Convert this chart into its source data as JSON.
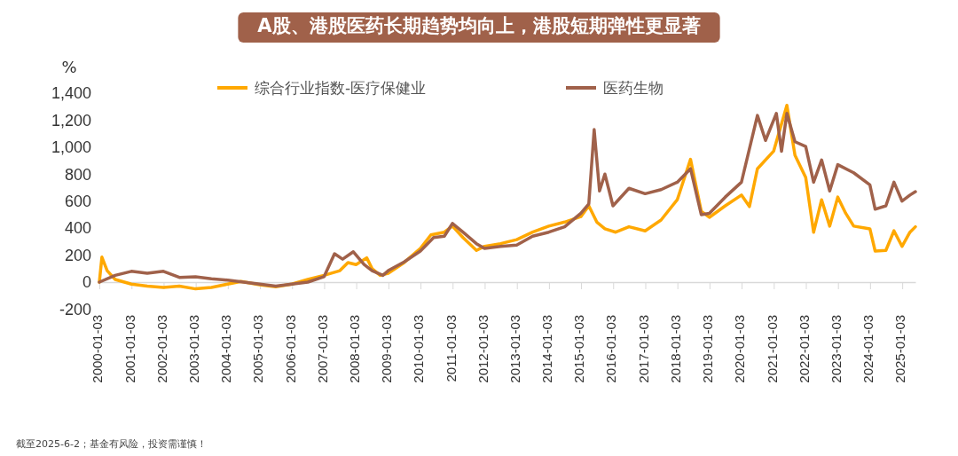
{
  "chart_data": {
    "type": "line",
    "title": "A股、港股医药长期趋势均向上，港股短期弹性更显著",
    "ylabel": "%",
    "annotations": [
      "截至2025-6-2；基金有风险，投资需谨慎！"
    ],
    "xlim": [
      "2000-01-03",
      "2025-06-02"
    ],
    "xticks": [
      "2000-01-03",
      "2001-01-03",
      "2002-01-03",
      "2003-01-03",
      "2004-01-03",
      "2005-01-03",
      "2006-01-03",
      "2007-01-03",
      "2008-01-03",
      "2009-01-03",
      "2010-01-03",
      "2011-01-03",
      "2012-01-03",
      "2013-01-03",
      "2014-01-03",
      "2015-01-03",
      "2016-01-03",
      "2017-01-03",
      "2018-01-03",
      "2019-01-03",
      "2020-01-03",
      "2021-01-03",
      "2022-01-03",
      "2023-01-03",
      "2024-01-03",
      "2025-01-03"
    ],
    "ylim": [
      -200,
      1400
    ],
    "yticks": [
      {
        "value": -200,
        "label": "-200"
      },
      0,
      200,
      400,
      600,
      800,
      {
        "value": 1000,
        "label": "1,000"
      },
      {
        "value": 1200,
        "label": "1,200"
      },
      {
        "value": 1400,
        "label": "1,400"
      }
    ],
    "legend": "top",
    "grid": false,
    "line_style": "solid",
    "marker": "none",
    "series": [
      {
        "name": "综合行业指数-医疗保健业",
        "color": "#ffa800",
        "x": [
          "2000-01-03",
          "2000-02",
          "2000-04",
          "2000-07",
          "2001-01",
          "2001-07",
          "2002-01",
          "2002-07",
          "2003-01",
          "2003-07",
          "2004-01",
          "2004-06",
          "2005-01",
          "2005-07",
          "2006-01",
          "2006-07",
          "2007-01",
          "2007-07",
          "2007-10",
          "2008-01",
          "2008-05",
          "2008-07",
          "2008-10",
          "2009-01",
          "2009-07",
          "2010-01",
          "2010-05",
          "2010-10",
          "2011-01",
          "2011-05",
          "2011-10",
          "2012-01",
          "2012-07",
          "2013-01",
          "2013-07",
          "2014-01",
          "2014-07",
          "2015-01",
          "2015-04",
          "2015-07",
          "2015-10",
          "2016-02",
          "2016-07",
          "2017-01",
          "2017-07",
          "2018-01",
          "2018-06",
          "2018-10",
          "2019-01",
          "2019-07",
          "2020-01",
          "2020-04",
          "2020-07",
          "2021-01",
          "2021-06",
          "2021-09",
          "2022-01",
          "2022-04",
          "2022-07",
          "2022-10",
          "2023-01",
          "2023-04",
          "2023-07",
          "2024-01",
          "2024-03",
          "2024-07",
          "2024-10",
          "2025-01",
          "2025-04",
          "2025-06-02"
        ],
        "values": [
          0,
          185,
          85,
          20,
          -15,
          -30,
          -40,
          -30,
          -50,
          -40,
          -15,
          5,
          -20,
          -35,
          -15,
          20,
          50,
          85,
          145,
          130,
          180,
          100,
          50,
          65,
          145,
          250,
          350,
          370,
          415,
          330,
          235,
          265,
          285,
          315,
          370,
          415,
          445,
          485,
          565,
          445,
          395,
          370,
          410,
          380,
          460,
          610,
          910,
          525,
          480,
          565,
          645,
          560,
          840,
          970,
          1310,
          940,
          775,
          370,
          610,
          415,
          630,
          510,
          415,
          395,
          230,
          235,
          380,
          265,
          370,
          410
        ]
      },
      {
        "name": "医药生物",
        "color": "#a0614a",
        "x": [
          "2000-01-03",
          "2000-07",
          "2001-01",
          "2001-07",
          "2002-01",
          "2002-07",
          "2003-01",
          "2003-07",
          "2004-01",
          "2004-07",
          "2005-01",
          "2005-07",
          "2006-01",
          "2006-07",
          "2007-01",
          "2007-05",
          "2007-08",
          "2007-12",
          "2008-04",
          "2008-07",
          "2008-11",
          "2009-01",
          "2009-07",
          "2010-01",
          "2010-06",
          "2010-10",
          "2011-01",
          "2011-05",
          "2011-10",
          "2012-01",
          "2012-07",
          "2013-01",
          "2013-07",
          "2014-01",
          "2014-07",
          "2015-01",
          "2015-04",
          "2015-06",
          "2015-08",
          "2015-10",
          "2016-01",
          "2016-07",
          "2017-01",
          "2017-07",
          "2018-01",
          "2018-06",
          "2018-10",
          "2019-01",
          "2019-07",
          "2020-01",
          "2020-07",
          "2020-10",
          "2021-02",
          "2021-04",
          "2021-06",
          "2021-09",
          "2022-01",
          "2022-04",
          "2022-07",
          "2022-10",
          "2023-01",
          "2023-07",
          "2024-01",
          "2024-03",
          "2024-07",
          "2024-10",
          "2025-01",
          "2025-04",
          "2025-06-02"
        ],
        "values": [
          0,
          50,
          80,
          65,
          80,
          35,
          40,
          25,
          15,
          0,
          -15,
          -30,
          -15,
          0,
          40,
          210,
          170,
          225,
          130,
          85,
          50,
          85,
          150,
          230,
          330,
          340,
          435,
          370,
          285,
          250,
          265,
          275,
          340,
          370,
          410,
          510,
          580,
          1130,
          675,
          800,
          565,
          695,
          655,
          685,
          740,
          840,
          500,
          510,
          630,
          740,
          1235,
          1050,
          1250,
          970,
          1250,
          1040,
          1005,
          740,
          905,
          675,
          870,
          810,
          720,
          540,
          565,
          740,
          600,
          645,
          670
        ]
      }
    ]
  }
}
